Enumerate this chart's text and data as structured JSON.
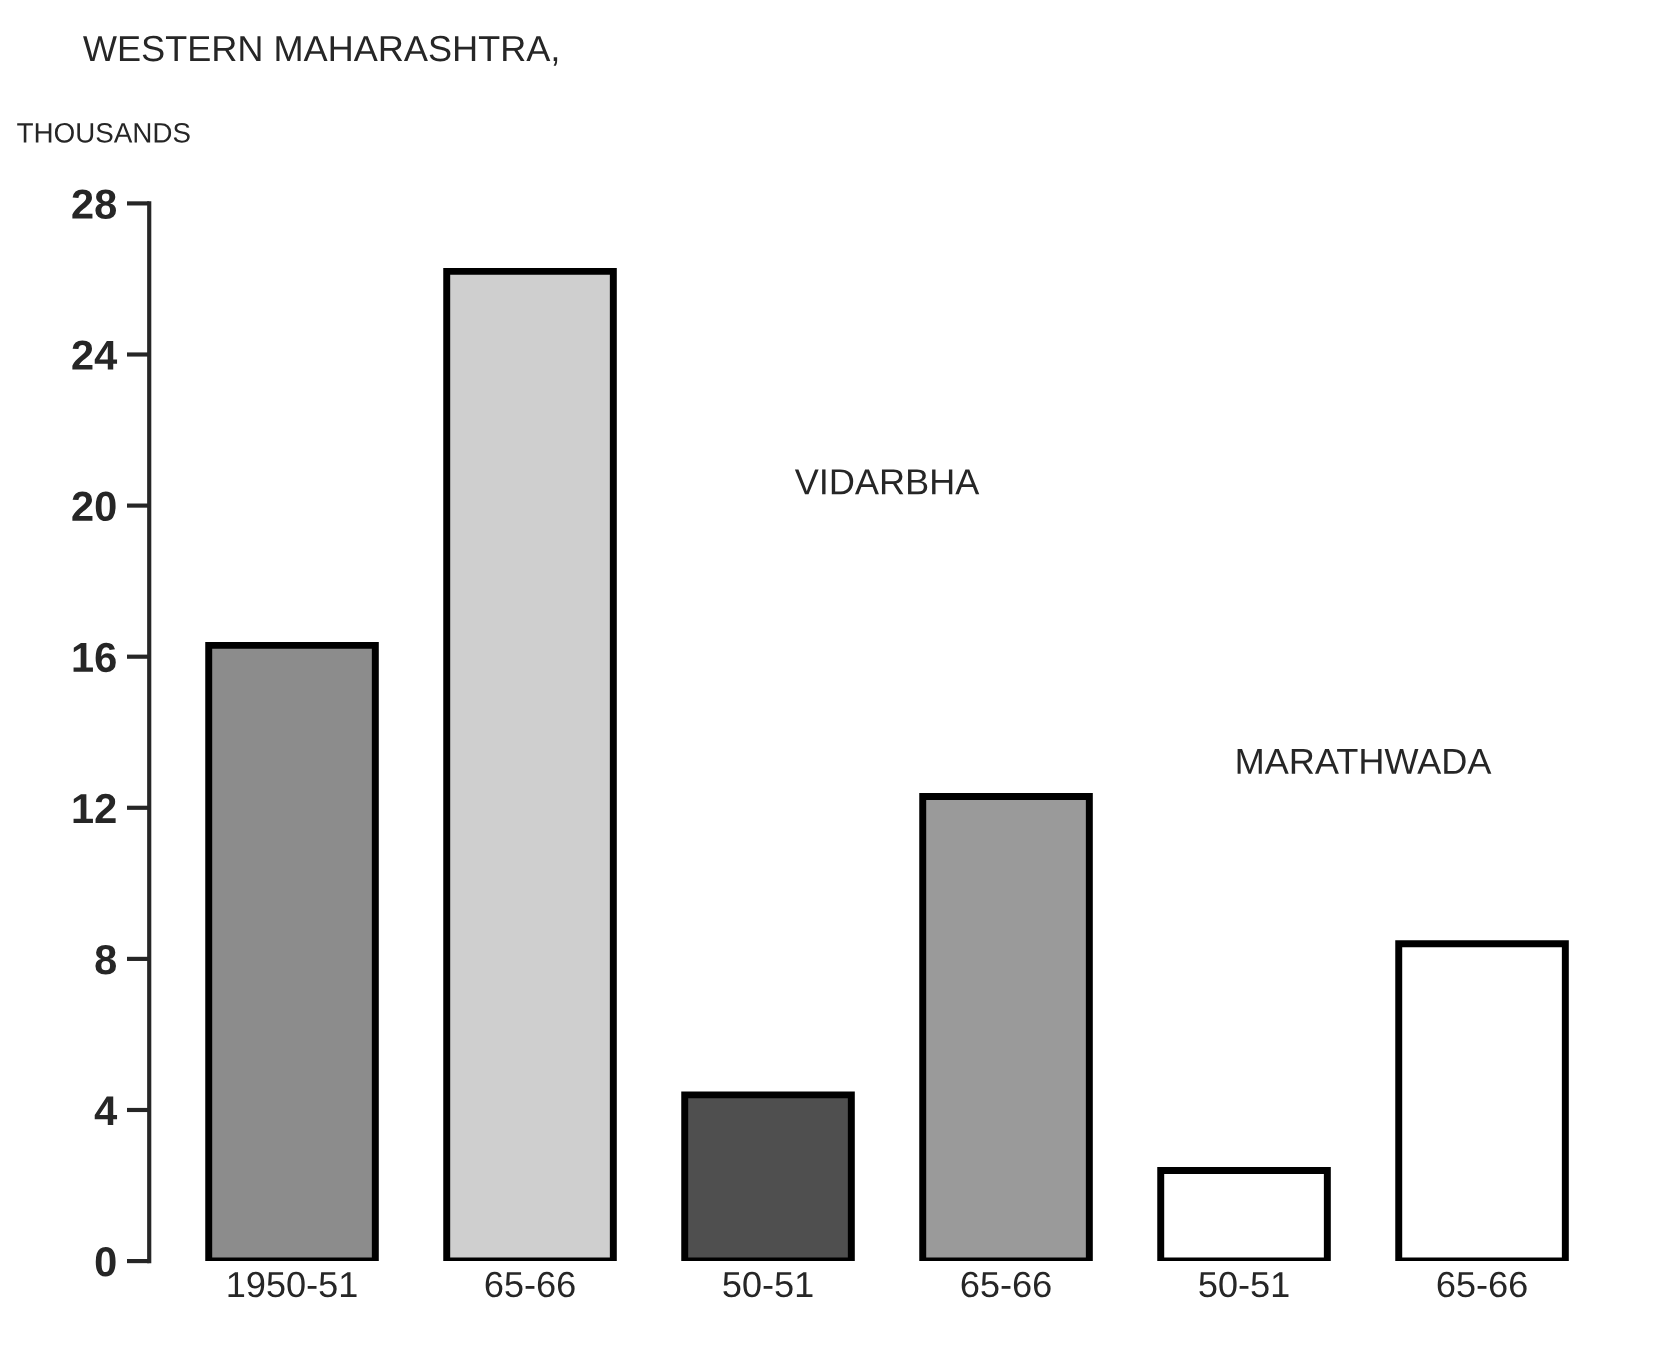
{
  "chart_data": {
    "type": "bar",
    "title": "WESTERN MAHARASHTRA,",
    "ylabel": "THOUSANDS",
    "categories": [
      "1950-51",
      "65-66",
      "50-51",
      "65-66",
      "50-51",
      "65-66"
    ],
    "values": [
      16.3,
      26.2,
      4.4,
      12.3,
      2.4,
      8.4
    ],
    "colors": [
      "#8c8c8c",
      "#cfcfcf",
      "#4f4f4f",
      "#9a9a9a",
      "#ffffff",
      "#ffffff"
    ],
    "annotations": [
      "VIDARBHA",
      "MARATHWADA"
    ],
    "ylim": [
      0,
      28
    ],
    "yticks": [
      0,
      4,
      8,
      12,
      16,
      20,
      24,
      28
    ],
    "grid": false
  }
}
